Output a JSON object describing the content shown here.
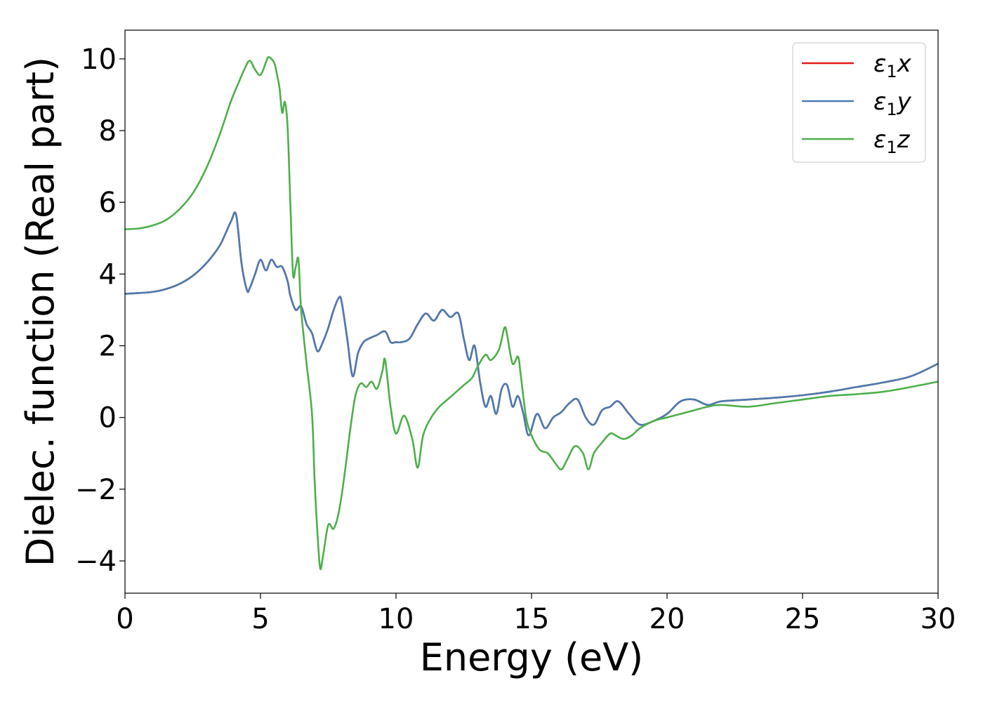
{
  "chart_data": {
    "type": "line",
    "xlabel": "Energy (eV)",
    "ylabel": "Dielec. function (Real part)",
    "xlim": [
      0,
      30
    ],
    "ylim": [
      -4.9,
      10.8
    ],
    "xticks": [
      0,
      5,
      10,
      15,
      20,
      25,
      30
    ],
    "yticks": [
      -4,
      -2,
      0,
      2,
      4,
      6,
      8,
      10
    ],
    "xtick_labels": [
      "0",
      "5",
      "10",
      "15",
      "20",
      "25",
      "30"
    ],
    "ytick_labels": [
      "−4",
      "−2",
      "0",
      "2",
      "4",
      "6",
      "8",
      "10"
    ],
    "grid": false,
    "legend_position": "top-right",
    "series": [
      {
        "name": "ε1x",
        "color": "#e41a1c",
        "x": [
          0,
          0.5,
          1,
          1.5,
          2,
          2.5,
          3,
          3.5,
          3.9,
          4.1,
          4.3,
          4.5,
          4.6,
          4.8,
          5.0,
          5.2,
          5.4,
          5.6,
          5.8,
          6.0,
          6.1,
          6.3,
          6.5,
          6.7,
          6.9,
          7.1,
          7.3,
          7.5,
          7.7,
          7.9,
          8.0,
          8.2,
          8.4,
          8.6,
          8.8,
          9.0,
          9.3,
          9.6,
          9.8,
          10.0,
          10.2,
          10.5,
          10.8,
          11.1,
          11.4,
          11.7,
          12.0,
          12.3,
          12.5,
          12.7,
          12.9,
          13.1,
          13.3,
          13.5,
          13.7,
          13.9,
          14.1,
          14.3,
          14.5,
          14.7,
          14.9,
          15.2,
          15.5,
          15.8,
          16.1,
          16.4,
          16.7,
          17.0,
          17.3,
          17.6,
          17.9,
          18.2,
          18.6,
          19.0,
          19.5,
          20.0,
          20.5,
          21.0,
          21.5,
          22.0,
          23.0,
          24.0,
          25.0,
          26.0,
          27.0,
          28.0,
          29.0,
          30.0
        ],
        "values": [
          3.45,
          3.47,
          3.5,
          3.58,
          3.72,
          3.95,
          4.3,
          4.8,
          5.45,
          5.65,
          4.3,
          3.55,
          3.6,
          4.0,
          4.4,
          4.1,
          4.4,
          4.2,
          4.2,
          3.8,
          3.4,
          3.0,
          3.1,
          2.6,
          2.35,
          1.85,
          2.1,
          2.5,
          3.0,
          3.35,
          3.2,
          2.2,
          1.15,
          1.8,
          2.1,
          2.2,
          2.3,
          2.4,
          2.1,
          2.1,
          2.1,
          2.2,
          2.6,
          2.9,
          2.7,
          3.0,
          2.8,
          2.9,
          2.2,
          1.6,
          2.0,
          1.0,
          0.3,
          0.6,
          0.1,
          0.8,
          0.9,
          0.3,
          0.6,
          0.1,
          -0.5,
          0.1,
          -0.3,
          0.0,
          0.15,
          0.4,
          0.5,
          0.0,
          -0.2,
          0.2,
          0.3,
          0.45,
          0.1,
          -0.2,
          -0.1,
          0.1,
          0.45,
          0.5,
          0.35,
          0.45,
          0.5,
          0.55,
          0.62,
          0.72,
          0.85,
          0.98,
          1.15,
          1.5
        ]
      },
      {
        "name": "ε1y",
        "color": "#4a7cb0",
        "x": [
          0,
          0.5,
          1,
          1.5,
          2,
          2.5,
          3,
          3.5,
          3.9,
          4.1,
          4.3,
          4.5,
          4.6,
          4.8,
          5.0,
          5.2,
          5.4,
          5.6,
          5.8,
          6.0,
          6.1,
          6.3,
          6.5,
          6.7,
          6.9,
          7.1,
          7.3,
          7.5,
          7.7,
          7.9,
          8.0,
          8.2,
          8.4,
          8.6,
          8.8,
          9.0,
          9.3,
          9.6,
          9.8,
          10.0,
          10.2,
          10.5,
          10.8,
          11.1,
          11.4,
          11.7,
          12.0,
          12.3,
          12.5,
          12.7,
          12.9,
          13.1,
          13.3,
          13.5,
          13.7,
          13.9,
          14.1,
          14.3,
          14.5,
          14.7,
          14.9,
          15.2,
          15.5,
          15.8,
          16.1,
          16.4,
          16.7,
          17.0,
          17.3,
          17.6,
          17.9,
          18.2,
          18.6,
          19.0,
          19.5,
          20.0,
          20.5,
          21.0,
          21.5,
          22.0,
          23.0,
          24.0,
          25.0,
          26.0,
          27.0,
          28.0,
          29.0,
          30.0
        ],
        "values": [
          3.45,
          3.47,
          3.5,
          3.58,
          3.72,
          3.95,
          4.3,
          4.8,
          5.45,
          5.65,
          4.3,
          3.55,
          3.6,
          4.0,
          4.4,
          4.1,
          4.4,
          4.2,
          4.2,
          3.8,
          3.4,
          3.0,
          3.1,
          2.6,
          2.35,
          1.85,
          2.1,
          2.5,
          3.0,
          3.35,
          3.2,
          2.2,
          1.15,
          1.8,
          2.1,
          2.2,
          2.3,
          2.4,
          2.1,
          2.1,
          2.1,
          2.2,
          2.6,
          2.9,
          2.7,
          3.0,
          2.8,
          2.9,
          2.2,
          1.6,
          2.0,
          1.0,
          0.3,
          0.6,
          0.1,
          0.8,
          0.9,
          0.3,
          0.6,
          0.1,
          -0.5,
          0.1,
          -0.3,
          0.0,
          0.15,
          0.4,
          0.5,
          0.0,
          -0.2,
          0.2,
          0.3,
          0.45,
          0.1,
          -0.2,
          -0.1,
          0.1,
          0.45,
          0.5,
          0.35,
          0.45,
          0.5,
          0.55,
          0.62,
          0.72,
          0.85,
          0.98,
          1.15,
          1.5
        ]
      },
      {
        "name": "ε1z",
        "color": "#4daf4a",
        "x": [
          0,
          0.5,
          1,
          1.5,
          2,
          2.5,
          3,
          3.5,
          3.9,
          4.2,
          4.4,
          4.6,
          4.8,
          5.0,
          5.2,
          5.3,
          5.5,
          5.6,
          5.7,
          5.8,
          5.9,
          6.0,
          6.1,
          6.2,
          6.3,
          6.4,
          6.5,
          6.7,
          6.9,
          7.0,
          7.1,
          7.2,
          7.3,
          7.5,
          7.7,
          7.9,
          8.1,
          8.3,
          8.5,
          8.7,
          8.9,
          9.1,
          9.3,
          9.5,
          9.6,
          9.8,
          10.0,
          10.3,
          10.6,
          10.8,
          11.0,
          11.3,
          11.6,
          11.9,
          12.2,
          12.5,
          12.8,
          13.0,
          13.3,
          13.5,
          13.8,
          14.0,
          14.1,
          14.3,
          14.5,
          14.6,
          14.8,
          15.0,
          15.3,
          15.6,
          15.9,
          16.1,
          16.3,
          16.6,
          16.9,
          17.1,
          17.3,
          17.6,
          17.9,
          18.1,
          18.4,
          18.7,
          19.0,
          19.5,
          20.0,
          20.5,
          21.0,
          21.5,
          22.0,
          23.0,
          24.0,
          25.0,
          26.0,
          27.0,
          28.0,
          29.0,
          30.0
        ],
        "values": [
          5.25,
          5.27,
          5.35,
          5.5,
          5.8,
          6.25,
          6.95,
          7.9,
          8.8,
          9.35,
          9.7,
          9.95,
          9.7,
          9.55,
          9.9,
          10.05,
          9.9,
          9.6,
          9.2,
          8.5,
          8.8,
          8.1,
          6.0,
          4.0,
          4.2,
          4.4,
          3.0,
          1.5,
          0.1,
          -1.8,
          -3.2,
          -4.2,
          -3.9,
          -3.0,
          -3.1,
          -2.6,
          -1.6,
          -0.4,
          0.6,
          0.95,
          0.85,
          1.0,
          0.8,
          1.3,
          1.6,
          0.3,
          -0.45,
          0.05,
          -0.6,
          -1.4,
          -0.5,
          0.0,
          0.3,
          0.5,
          0.7,
          0.9,
          1.1,
          1.4,
          1.75,
          1.6,
          1.9,
          2.5,
          2.3,
          1.5,
          1.7,
          1.2,
          0.0,
          -0.5,
          -0.9,
          -1.0,
          -1.3,
          -1.45,
          -1.2,
          -0.8,
          -1.0,
          -1.45,
          -1.0,
          -0.7,
          -0.45,
          -0.5,
          -0.6,
          -0.5,
          -0.3,
          -0.1,
          0.0,
          0.1,
          0.2,
          0.3,
          0.35,
          0.3,
          0.4,
          0.5,
          0.6,
          0.65,
          0.72,
          0.85,
          1.0
        ]
      }
    ]
  }
}
